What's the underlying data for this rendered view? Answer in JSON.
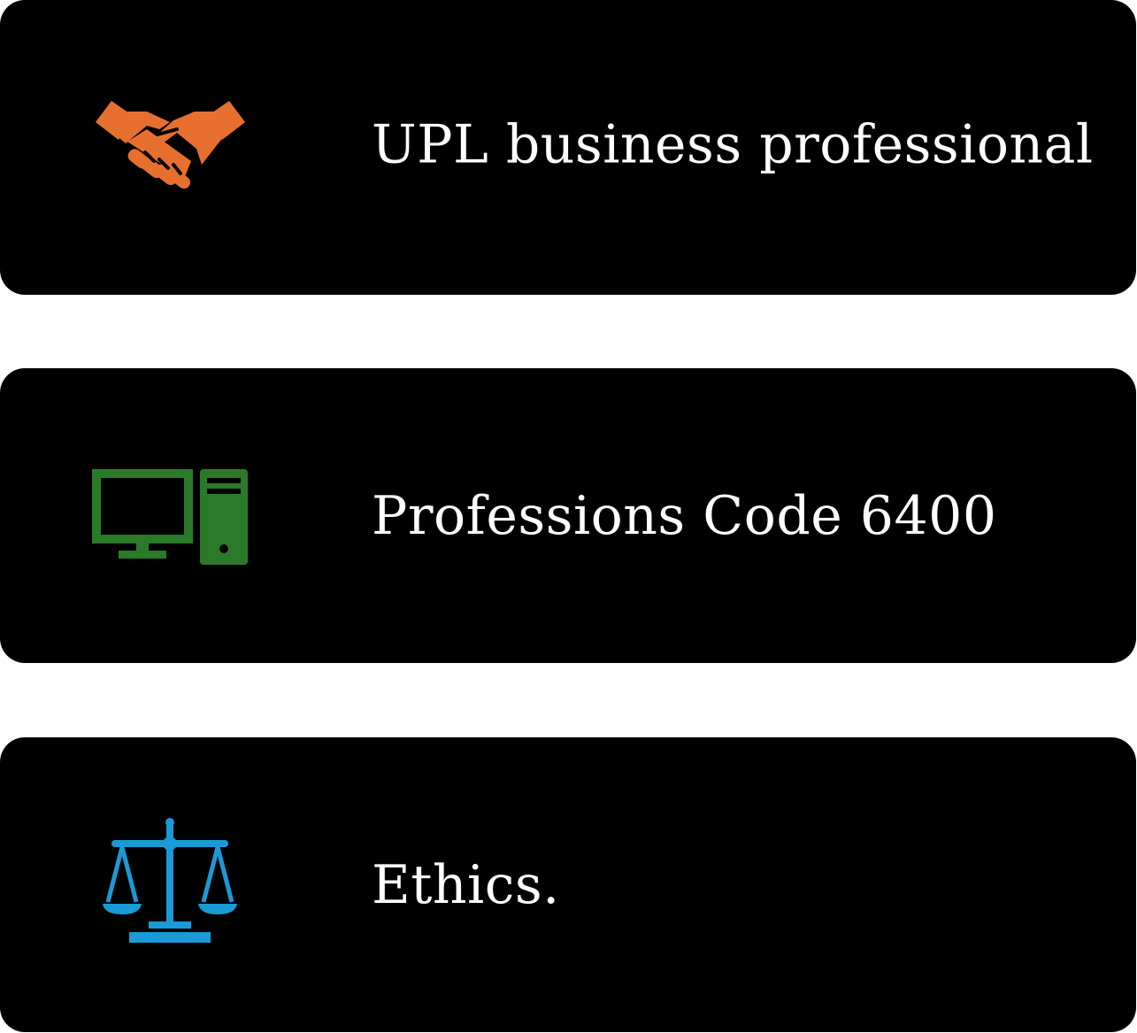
{
  "colors": {
    "card_background": "#000000",
    "page_background": "#ffffff",
    "text": "#ffffff",
    "handshake": "#e8702e",
    "computer": "#2a7a2a",
    "scales": "#1a9ad6"
  },
  "cards": [
    {
      "icon": "handshake-icon",
      "label": "UPL business professional"
    },
    {
      "icon": "desktop-computer-icon",
      "label": "Professions Code 6400"
    },
    {
      "icon": "scales-of-justice-icon",
      "label": "Ethics."
    }
  ]
}
